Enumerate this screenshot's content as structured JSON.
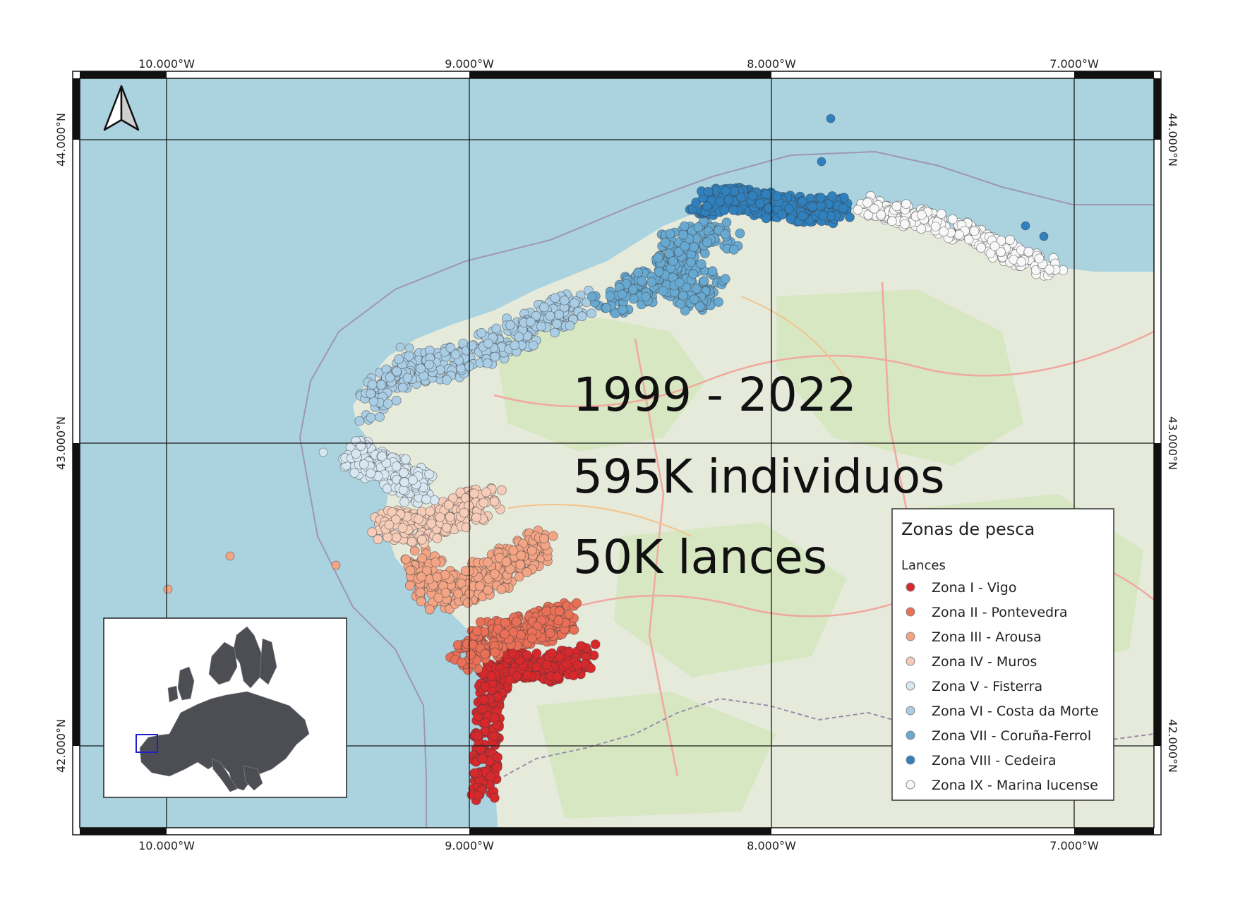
{
  "map": {
    "lon_labels": [
      "10.000°W",
      "9.000°W",
      "8.000°W",
      "7.000°W"
    ],
    "lat_labels": [
      "44.000°N",
      "43.000°N",
      "42.000°N"
    ],
    "overlay": {
      "line1": "1999 - 2022",
      "line2": "595K individuos",
      "line3": "50K lances"
    },
    "colors": {
      "sea": "#aad3df",
      "land": "#e6eadb",
      "inset_land": "#4d4e54",
      "inset_box": "#1f1fd0"
    },
    "north_arrow_icon": "north-arrow-icon"
  },
  "legend": {
    "title": "Zonas de pesca",
    "subtitle": "Lances",
    "items": [
      {
        "label": "Zona I - Vigo",
        "color": "#d7282c"
      },
      {
        "label": "Zona II - Pontevedra",
        "color": "#e96f56"
      },
      {
        "label": "Zona III - Arousa",
        "color": "#f2a484"
      },
      {
        "label": "Zona IV - Muros",
        "color": "#f6ccb8"
      },
      {
        "label": "Zona V - Fisterra",
        "color": "#d7e7f1"
      },
      {
        "label": "Zona VI - Costa da Morte",
        "color": "#a9cde5"
      },
      {
        "label": "Zona VII - Coruña-Ferrol",
        "color": "#68a9d1"
      },
      {
        "label": "Zona VIII - Cedeira",
        "color": "#2f80bd"
      },
      {
        "label": "Zona IX - Marina lucense",
        "color": "#f8f8f8"
      }
    ]
  }
}
